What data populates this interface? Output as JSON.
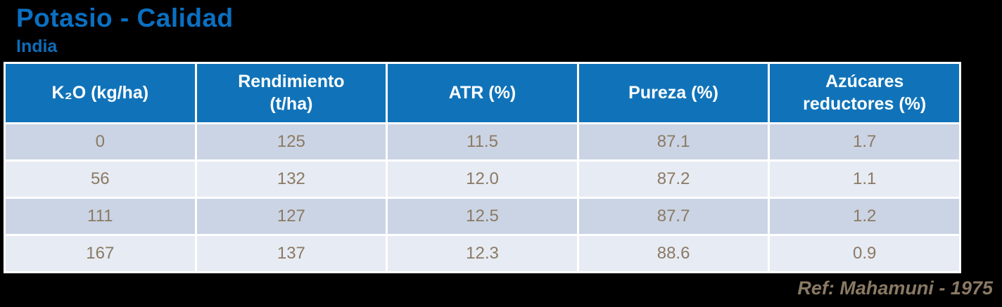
{
  "slide": {
    "title": "Potasio - Calidad",
    "subtitle": "India",
    "reference": "Ref: Mahamuni - 1975"
  },
  "colors": {
    "background": "#000000",
    "title_blue": "#0A70C2",
    "subtitle_blue": "#0E6CB8",
    "header_bg": "#1073B9",
    "header_text": "#FFFFFF",
    "row_odd_bg": "#CBD4E4",
    "row_even_bg": "#E7EBF3",
    "cell_text": "#8A7A64",
    "grid_lines": "#FFFFFF"
  },
  "table": {
    "columns": [
      "K₂O (kg/ha)",
      "Rendimiento\n(t/ha)",
      "ATR (%)",
      "Pureza (%)",
      "Azúcares\nreductores (%)"
    ],
    "rows": [
      {
        "cells": [
          "0",
          "125",
          "11.5",
          "87.1",
          "1.7"
        ]
      },
      {
        "cells": [
          "56",
          "132",
          "12.0",
          "87.2",
          "1.1"
        ]
      },
      {
        "cells": [
          "111",
          "127",
          "12.5",
          "87.7",
          "1.2"
        ]
      },
      {
        "cells": [
          "167",
          "137",
          "12.3",
          "88.6",
          "0.9"
        ]
      }
    ]
  },
  "chart_data": {
    "type": "table",
    "title": "Potasio - Calidad",
    "subtitle": "India",
    "columns": [
      "K2O (kg/ha)",
      "Rendimiento (t/ha)",
      "ATR (%)",
      "Pureza (%)",
      "Azucares reductores (%)"
    ],
    "rows": [
      [
        0,
        125,
        11.5,
        87.1,
        1.7
      ],
      [
        56,
        132,
        12.0,
        87.2,
        1.1
      ],
      [
        111,
        127,
        12.5,
        87.7,
        1.2
      ],
      [
        167,
        137,
        12.3,
        88.6,
        0.9
      ]
    ],
    "reference": "Ref: Mahamuni - 1975"
  }
}
